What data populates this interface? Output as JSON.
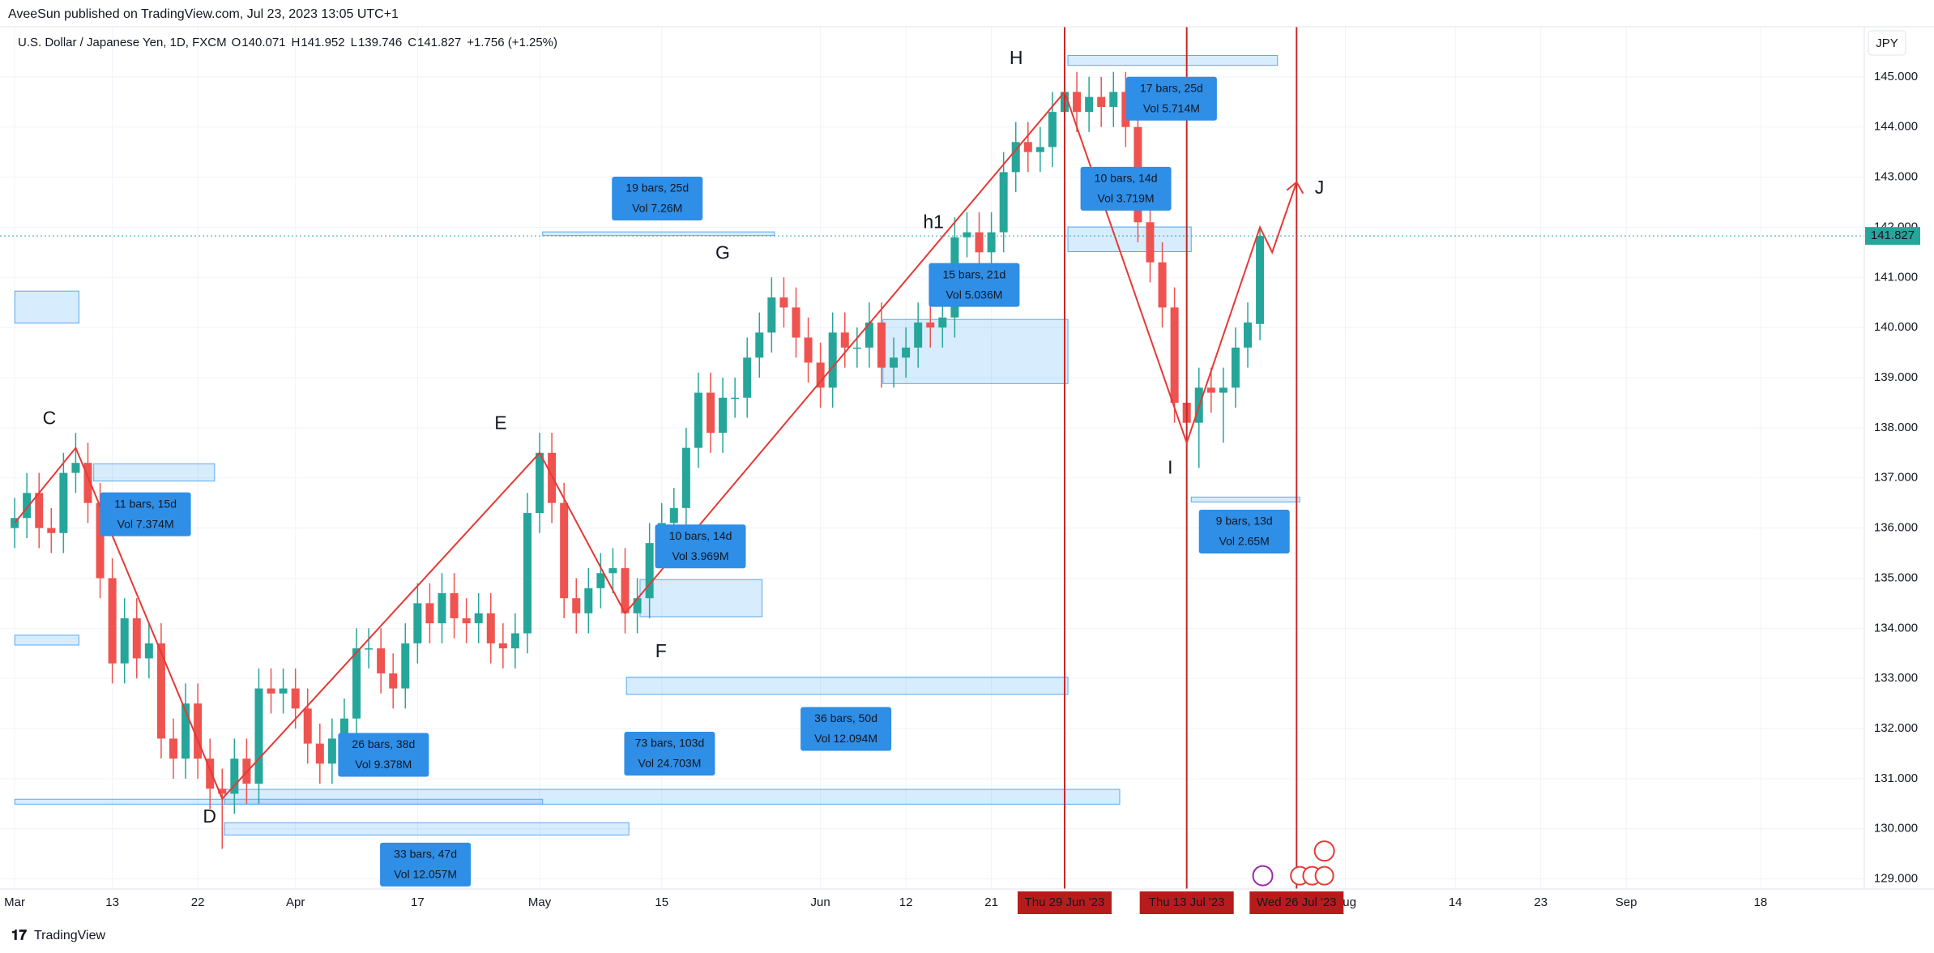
{
  "header": {
    "published": "AveeSun published on TradingView.com, Jul 23, 2023 13:05 UTC+1",
    "symbol": "U.S. Dollar / Japanese Yen, 1D, FXCM",
    "legend_labels": [
      "O",
      "H",
      "L",
      "C"
    ],
    "change": "+1.756 (+1.25%)",
    "currency": "JPY"
  },
  "footer": {
    "brand": "TradingView"
  },
  "chart_data": {
    "type": "candlestick",
    "open": [
      136.0,
      136.2,
      136.7,
      136.0,
      135.9,
      137.1,
      137.3,
      136.5,
      135.0,
      133.3,
      134.2,
      133.4,
      133.7,
      131.8,
      131.4,
      132.5,
      131.4,
      130.8,
      130.7,
      131.4,
      130.9,
      132.8,
      132.7,
      132.8,
      132.4,
      131.7,
      131.3,
      131.8,
      132.2,
      133.6,
      133.6,
      133.1,
      132.8,
      133.7,
      134.5,
      134.1,
      134.7,
      134.2,
      134.1,
      134.3,
      133.7,
      133.6,
      133.9,
      136.3,
      137.5,
      136.5,
      134.6,
      134.3,
      134.8,
      135.1,
      135.2,
      134.3,
      134.6,
      135.7,
      136.1,
      136.4,
      137.6,
      138.7,
      137.9,
      138.6,
      138.6,
      139.4,
      139.9,
      140.6,
      140.4,
      139.8,
      139.3,
      138.8,
      139.9,
      139.6,
      139.6,
      140.1,
      139.2,
      139.4,
      139.6,
      140.1,
      140.0,
      140.2,
      141.8,
      141.9,
      141.5,
      141.9,
      143.1,
      143.7,
      143.5,
      143.6,
      144.3,
      144.7,
      144.3,
      144.6,
      144.4,
      144.7,
      144.0,
      142.1,
      141.3,
      140.4,
      138.5,
      138.1,
      138.8,
      138.7,
      138.8,
      139.6,
      140.071
    ],
    "high": [
      136.6,
      137.1,
      137.1,
      136.4,
      137.5,
      137.9,
      137.7,
      136.9,
      135.4,
      134.6,
      134.6,
      134.1,
      134.1,
      132.2,
      132.9,
      132.9,
      131.8,
      131.2,
      131.8,
      131.8,
      133.2,
      133.2,
      133.2,
      133.2,
      132.8,
      132.1,
      132.2,
      132.6,
      134.0,
      134.0,
      134.0,
      133.5,
      134.1,
      134.9,
      134.9,
      135.1,
      135.1,
      134.6,
      134.7,
      134.7,
      134.1,
      134.3,
      136.7,
      137.9,
      137.9,
      136.9,
      135.0,
      135.2,
      135.5,
      135.6,
      135.6,
      135.0,
      136.1,
      136.5,
      136.8,
      138.0,
      139.1,
      139.1,
      139.0,
      139.0,
      139.8,
      140.3,
      141.0,
      141.0,
      140.8,
      140.2,
      139.7,
      140.3,
      140.3,
      140.0,
      140.5,
      140.5,
      139.8,
      140.0,
      140.5,
      140.5,
      140.6,
      142.2,
      142.3,
      142.3,
      142.3,
      143.5,
      144.1,
      144.1,
      144.0,
      144.7,
      145.1,
      145.1,
      145.0,
      145.0,
      145.1,
      145.1,
      144.4,
      142.5,
      141.7,
      140.8,
      138.9,
      139.2,
      139.2,
      139.2,
      140.0,
      140.5,
      141.952
    ],
    "low": [
      135.6,
      135.8,
      135.6,
      135.5,
      135.5,
      136.7,
      136.1,
      134.6,
      132.9,
      132.9,
      133.0,
      133.0,
      131.4,
      131.0,
      131.0,
      131.0,
      130.4,
      129.6,
      130.3,
      130.5,
      130.5,
      132.3,
      132.3,
      132.0,
      131.3,
      130.9,
      130.9,
      131.4,
      131.8,
      133.2,
      132.7,
      132.4,
      132.4,
      133.3,
      133.7,
      133.7,
      133.8,
      133.7,
      133.7,
      133.3,
      133.2,
      133.2,
      133.5,
      135.9,
      136.1,
      134.2,
      133.9,
      133.9,
      134.4,
      134.7,
      133.9,
      133.9,
      134.2,
      135.3,
      135.7,
      136.0,
      137.2,
      137.5,
      137.5,
      138.2,
      138.2,
      139.0,
      139.5,
      140.0,
      139.4,
      138.9,
      138.4,
      138.4,
      139.2,
      139.2,
      139.2,
      138.8,
      138.8,
      139.0,
      139.2,
      139.6,
      139.6,
      139.8,
      141.4,
      141.1,
      141.1,
      141.5,
      142.7,
      143.1,
      143.1,
      143.2,
      143.9,
      143.9,
      143.9,
      144.0,
      144.0,
      143.6,
      141.7,
      140.9,
      140.0,
      138.1,
      137.7,
      137.2,
      138.3,
      137.7,
      138.4,
      139.2,
      139.746
    ],
    "close": [
      136.2,
      136.7,
      136.0,
      135.9,
      137.1,
      137.3,
      136.5,
      135.0,
      133.3,
      134.2,
      133.4,
      133.7,
      131.8,
      131.4,
      132.5,
      131.4,
      130.8,
      130.7,
      131.4,
      130.9,
      132.8,
      132.7,
      132.8,
      132.4,
      131.7,
      131.3,
      131.8,
      132.2,
      133.6,
      133.6,
      133.1,
      132.8,
      133.7,
      134.5,
      134.1,
      134.7,
      134.2,
      134.1,
      134.3,
      133.7,
      133.6,
      133.9,
      136.3,
      137.5,
      136.5,
      134.6,
      134.3,
      134.8,
      135.1,
      135.2,
      134.3,
      134.6,
      135.7,
      136.1,
      136.4,
      137.6,
      138.7,
      137.9,
      138.6,
      138.6,
      139.4,
      139.9,
      140.6,
      140.4,
      139.8,
      139.3,
      138.8,
      139.9,
      139.6,
      139.6,
      140.1,
      139.2,
      139.4,
      139.6,
      140.1,
      140.0,
      140.2,
      141.8,
      141.9,
      141.5,
      141.9,
      143.1,
      143.7,
      143.5,
      143.6,
      144.3,
      144.7,
      144.3,
      144.6,
      144.4,
      144.7,
      144.0,
      142.1,
      141.3,
      140.4,
      138.5,
      138.1,
      138.8,
      138.7,
      138.8,
      139.6,
      140.1,
      141.827
    ],
    "up_color": "#26a69a",
    "down_color": "#ef5350",
    "grid": true,
    "ylim": [
      128.8,
      146.0
    ],
    "xlim": [
      -1.2,
      151.5
    ],
    "yticks": [
      {
        "value": 129,
        "label": "129.000"
      },
      {
        "value": 130,
        "label": "130.000"
      },
      {
        "value": 131,
        "label": "131.000"
      },
      {
        "value": 132,
        "label": "132.000"
      },
      {
        "value": 133,
        "label": "133.000"
      },
      {
        "value": 134,
        "label": "134.000"
      },
      {
        "value": 135,
        "label": "135.000"
      },
      {
        "value": 136,
        "label": "136.000"
      },
      {
        "value": 137,
        "label": "137.000"
      },
      {
        "value": 138,
        "label": "138.000"
      },
      {
        "value": 139,
        "label": "139.000"
      },
      {
        "value": 140,
        "label": "140.000"
      },
      {
        "value": 141,
        "label": "141.000"
      },
      {
        "value": 142,
        "label": "142.000"
      },
      {
        "value": 143,
        "label": "143.000"
      },
      {
        "value": 144,
        "label": "144.000"
      },
      {
        "value": 145,
        "label": "145.000"
      }
    ],
    "xticks": [
      {
        "value": 0,
        "label": "Mar"
      },
      {
        "value": 8,
        "label": "13"
      },
      {
        "value": 15,
        "label": "22"
      },
      {
        "value": 23,
        "label": "Apr"
      },
      {
        "value": 33,
        "label": "17"
      },
      {
        "value": 43,
        "label": "May"
      },
      {
        "value": 53,
        "label": "15"
      },
      {
        "value": 66,
        "label": "Jun"
      },
      {
        "value": 73,
        "label": "12"
      },
      {
        "value": 80,
        "label": "21"
      },
      {
        "value": 109,
        "label": "Aug"
      },
      {
        "value": 118,
        "label": "14"
      },
      {
        "value": 125,
        "label": "23"
      },
      {
        "value": 132,
        "label": "Sep"
      },
      {
        "value": 143,
        "label": "18"
      }
    ],
    "zigzag": {
      "x": [
        0,
        5,
        17,
        43,
        50,
        86,
        96,
        102,
        103,
        105
      ],
      "values": [
        136.1,
        137.6,
        130.6,
        137.5,
        134.3,
        144.7,
        137.7,
        142.0,
        141.5,
        142.9
      ]
    },
    "wave_labels": [
      "C",
      "D",
      "E",
      "F",
      "G",
      "H",
      "h1",
      "I",
      "J"
    ],
    "measures": [
      [
        "11 bars, 15d",
        "Vol 7.374M"
      ],
      [
        "26 bars, 38d",
        "Vol 9.378M"
      ],
      [
        "33 bars, 47d",
        "Vol 12.057M"
      ],
      [
        "73 bars, 103d",
        "Vol 24.703M"
      ],
      [
        "36 bars, 50d",
        "Vol 12.094M"
      ],
      [
        "10 bars, 14d",
        "Vol 3.969M"
      ],
      [
        "19 bars, 25d",
        "Vol 7.26M"
      ],
      [
        "15 bars, 21d",
        "Vol 5.036M"
      ],
      [
        "10 bars, 14d",
        "Vol 3.719M"
      ],
      [
        "17 bars, 25d",
        "Vol 5.714M"
      ],
      [
        "9 bars, 13d",
        "Vol 2.65M"
      ]
    ],
    "date_markers": [
      "Thu 29 Jun '23",
      "Thu 13 Jul '23",
      "Wed 26 Jul '23"
    ]
  }
}
